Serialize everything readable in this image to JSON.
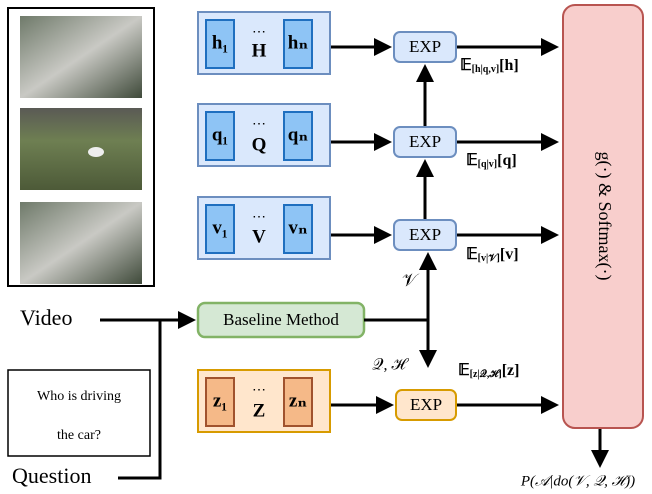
{
  "inputs": {
    "video": "Video",
    "question": "Question",
    "question_text": [
      "Who is driving",
      "the car?"
    ]
  },
  "baseline": "Baseline Method",
  "encoders": [
    {
      "first": "h₁",
      "middle": "H",
      "last": "hₙ"
    },
    {
      "first": "q₁",
      "middle": "Q",
      "last": "qₙ"
    },
    {
      "first": "v₁",
      "middle": "V",
      "last": "vₙ"
    },
    {
      "first": "z₁",
      "middle": "Z",
      "last": "zₙ"
    }
  ],
  "exp": [
    "EXP",
    "EXP",
    "EXP",
    "EXP"
  ],
  "expectations": [
    {
      "operator": "𝔼",
      "subscript": "[h|q,v]",
      "argument": "[h]"
    },
    {
      "operator": "𝔼",
      "subscript": "[q|v]",
      "argument": "[q]"
    },
    {
      "operator": "𝔼",
      "subscript": "[v|𝒱]",
      "argument": "[v]"
    },
    {
      "operator": "𝔼",
      "subscript": "[z|𝒬,ℋ]",
      "argument": "[z]"
    }
  ],
  "edge_labels": [
    "𝒱",
    "𝒬, ℋ"
  ],
  "head": "g(·) & Softmax(·)",
  "output": "P(𝒜|do(𝒱, 𝒬, ℋ))"
}
